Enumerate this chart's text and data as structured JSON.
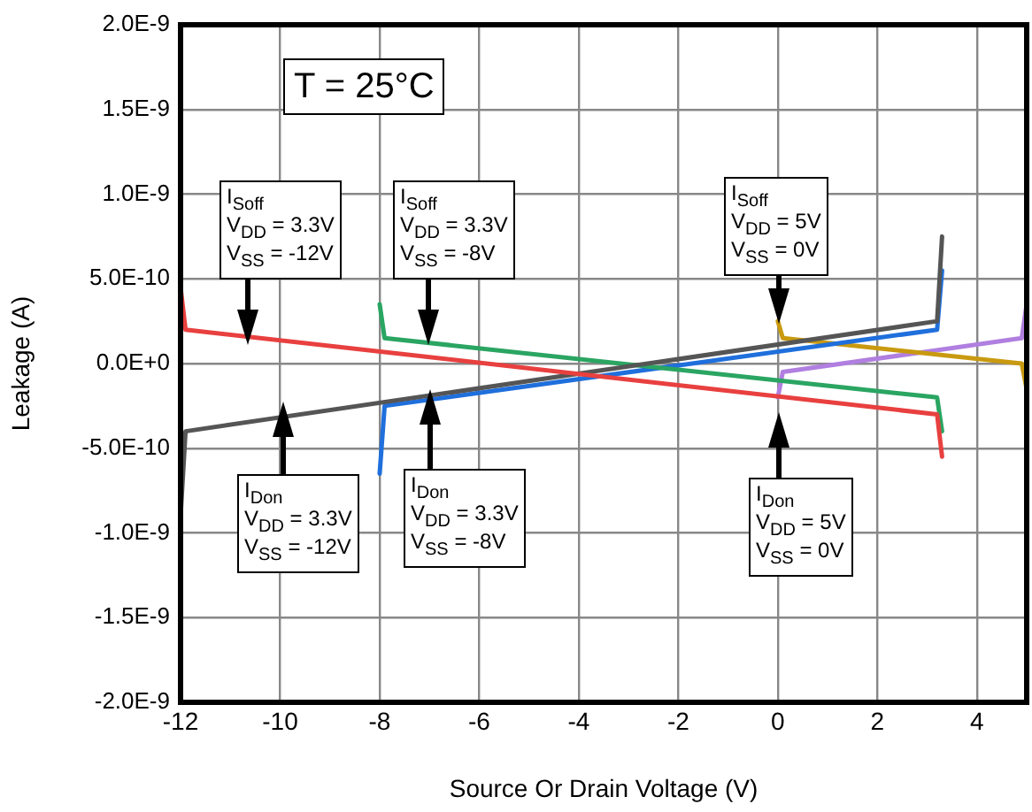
{
  "chart_data": {
    "type": "line",
    "xlabel": "Source Or Drain Voltage (V)",
    "ylabel": "Leakage (A)",
    "xlim": [
      -12,
      5
    ],
    "xticks": [
      -12,
      -10,
      -8,
      -6,
      -4,
      -2,
      0,
      2,
      4
    ],
    "ylim": [
      -2e-09,
      2e-09
    ],
    "yticks": [
      {
        "value": 2e-09,
        "label": "2.0E-9"
      },
      {
        "value": 1.5e-09,
        "label": "1.5E-9"
      },
      {
        "value": 1e-09,
        "label": "1.0E-9"
      },
      {
        "value": 5e-10,
        "label": "5.0E-10"
      },
      {
        "value": 0,
        "label": "0.0E+0"
      },
      {
        "value": -5e-10,
        "label": "-5.0E-10"
      },
      {
        "value": -1e-09,
        "label": "-1.0E-9"
      },
      {
        "value": -1.5e-09,
        "label": "-1.5E-9"
      },
      {
        "value": -2e-09,
        "label": "-2.0E-9"
      }
    ],
    "grid": true,
    "legend": false,
    "marker": "none",
    "line_style": "solid",
    "series": [
      {
        "color": "#e8403f",
        "x": [
          -12,
          -11.9,
          3.2,
          3.3
        ],
        "values": [
          4.5e-10,
          2e-10,
          -3e-10,
          -5.5e-10
        ]
      },
      {
        "color": "#555555",
        "x": [
          -12,
          -11.9,
          3.2,
          3.3
        ],
        "values": [
          -9e-10,
          -4e-10,
          2.5e-10,
          7.5e-10
        ]
      },
      {
        "color": "#2aa562",
        "x": [
          -8,
          -7.9,
          3.2,
          3.3
        ],
        "values": [
          3.5e-10,
          1.5e-10,
          -2e-10,
          -4e-10
        ]
      },
      {
        "color": "#1f6fdc",
        "x": [
          -8,
          -7.9,
          3.2,
          3.3
        ],
        "values": [
          -6.5e-10,
          -2.5e-10,
          2e-10,
          5.5e-10
        ]
      },
      {
        "color": "#c99a10",
        "x": [
          0,
          0.1,
          4.9,
          5
        ],
        "values": [
          2.5e-10,
          1.5e-10,
          0,
          -1.5e-10
        ]
      },
      {
        "color": "#b07fe0",
        "x": [
          0,
          0.1,
          4.9,
          5
        ],
        "values": [
          -2e-10,
          -5e-11,
          1.5e-10,
          3.5e-10
        ]
      }
    ],
    "annotations": [
      "T = 25°C",
      "I$_{Soff}$",
      "V$_{DD}$ = 3.3V",
      "V$_{SS}$ = -12V",
      "I$_{Soff}$",
      "V$_{DD}$ = 3.3V",
      "V$_{SS}$ = -8V",
      "I$_{Soff}$",
      "V$_{DD}$ = 5V",
      "V$_{SS}$ = 0V",
      "I$_{Don}$",
      "V$_{DD}$ = 3.3V",
      "V$_{SS}$ = -12V",
      "I$_{Don}$",
      "V$_{DD}$ = 3.3V",
      "V$_{SS}$ = -8V",
      "I$_{Don}$",
      "V$_{DD}$ = 5V",
      "V$_{SS}$ = 0V"
    ]
  }
}
